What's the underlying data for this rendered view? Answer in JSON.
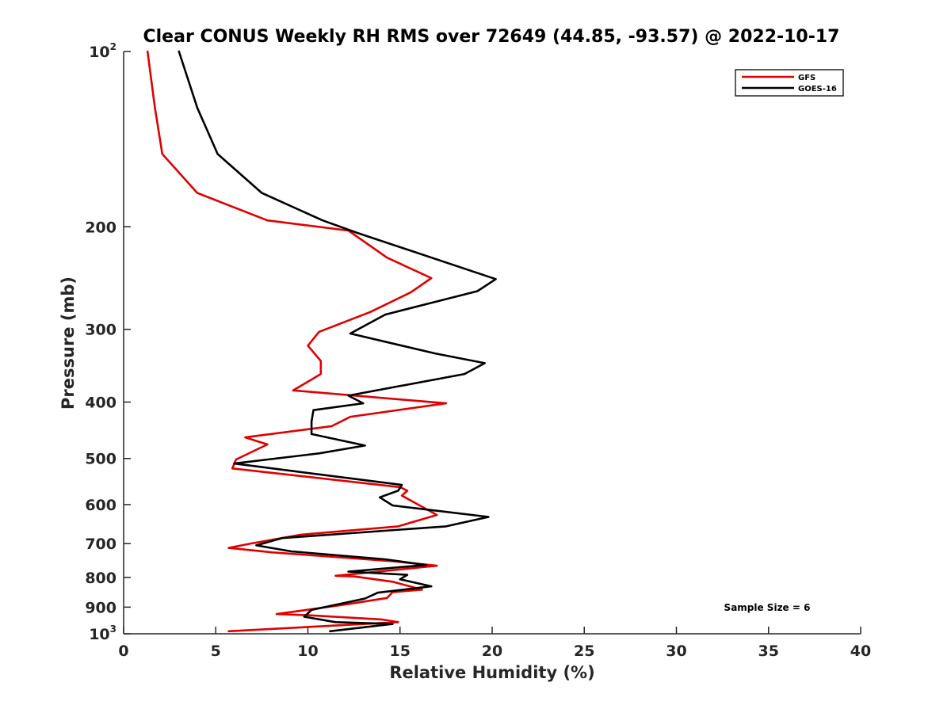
{
  "chart_data": {
    "type": "line",
    "title": "Clear CONUS Weekly RH RMS over 72649 (44.85, -93.57) @ 2022-10-17",
    "xlabel": "Relative Humidity (%)",
    "ylabel": "Pressure (mb)",
    "xlim": [
      0,
      40
    ],
    "ylim": [
      100,
      1000
    ],
    "y_scale": "log",
    "y_reversed": true,
    "x_ticks": [
      "0",
      "5",
      "10",
      "15",
      "20",
      "25",
      "30",
      "35",
      "40"
    ],
    "y_ticks": [
      {
        "value": 100,
        "base": "10",
        "exp": "2"
      },
      {
        "value": 200,
        "label": "200"
      },
      {
        "value": 300,
        "label": "300"
      },
      {
        "value": 400,
        "label": "400"
      },
      {
        "value": 500,
        "label": "500"
      },
      {
        "value": 600,
        "label": "600"
      },
      {
        "value": 700,
        "label": "700"
      },
      {
        "value": 800,
        "label": "800"
      },
      {
        "value": 900,
        "label": "900"
      },
      {
        "value": 1000,
        "base": "10",
        "exp": "3"
      }
    ],
    "grid": false,
    "legend_position": "top-right",
    "series": [
      {
        "name": "GFS",
        "color": "#e00000",
        "points": [
          [
            1.3,
            100
          ],
          [
            1.7,
            125
          ],
          [
            2.1,
            150
          ],
          [
            4.0,
            175
          ],
          [
            7.8,
            195
          ],
          [
            12.2,
            203
          ],
          [
            14.3,
            226
          ],
          [
            16.7,
            245
          ],
          [
            15.6,
            259
          ],
          [
            13.4,
            280
          ],
          [
            10.6,
            303
          ],
          [
            10.0,
            320
          ],
          [
            10.7,
            340
          ],
          [
            10.7,
            358
          ],
          [
            9.2,
            382
          ],
          [
            17.5,
            402
          ],
          [
            12.3,
            424
          ],
          [
            11.3,
            440
          ],
          [
            6.6,
            460
          ],
          [
            7.8,
            473
          ],
          [
            6.1,
            502
          ],
          [
            5.9,
            520
          ],
          [
            15.0,
            560
          ],
          [
            15.4,
            568
          ],
          [
            15.1,
            579
          ],
          [
            17.0,
            625
          ],
          [
            14.9,
            654
          ],
          [
            9.6,
            676
          ],
          [
            6.9,
            700
          ],
          [
            5.7,
            712
          ],
          [
            8.1,
            725
          ],
          [
            14.7,
            751
          ],
          [
            17.0,
            764
          ],
          [
            11.5,
            795
          ],
          [
            12.5,
            797
          ],
          [
            14.6,
            814
          ],
          [
            16.2,
            840
          ],
          [
            14.6,
            848
          ],
          [
            14.3,
            868
          ],
          [
            12.1,
            890
          ],
          [
            8.3,
            925
          ],
          [
            10.2,
            930
          ],
          [
            14.0,
            945
          ],
          [
            14.9,
            955
          ],
          [
            5.7,
            990
          ]
        ]
      },
      {
        "name": "GOES-16",
        "color": "#000000",
        "points": [
          [
            3.0,
            100
          ],
          [
            4.0,
            125
          ],
          [
            5.1,
            150
          ],
          [
            7.5,
            175
          ],
          [
            10.8,
            195
          ],
          [
            12.7,
            205
          ],
          [
            20.2,
            246
          ],
          [
            19.2,
            258
          ],
          [
            14.2,
            283
          ],
          [
            12.3,
            305
          ],
          [
            16.9,
            330
          ],
          [
            19.6,
            343
          ],
          [
            18.5,
            358
          ],
          [
            12.2,
            390
          ],
          [
            13.0,
            402
          ],
          [
            10.3,
            413
          ],
          [
            10.2,
            432
          ],
          [
            10.2,
            454
          ],
          [
            13.1,
            475
          ],
          [
            10.6,
            490
          ],
          [
            6.0,
            510
          ],
          [
            15.1,
            555
          ],
          [
            14.9,
            568
          ],
          [
            13.9,
            583
          ],
          [
            14.6,
            602
          ],
          [
            16.5,
            612
          ],
          [
            19.8,
            630
          ],
          [
            17.5,
            654
          ],
          [
            8.6,
            685
          ],
          [
            7.2,
            705
          ],
          [
            9.1,
            722
          ],
          [
            14.2,
            745
          ],
          [
            16.4,
            762
          ],
          [
            12.2,
            782
          ],
          [
            15.4,
            792
          ],
          [
            15.0,
            806
          ],
          [
            16.7,
            829
          ],
          [
            13.8,
            850
          ],
          [
            13.1,
            870
          ],
          [
            10.2,
            910
          ],
          [
            9.8,
            935
          ],
          [
            11.5,
            955
          ],
          [
            14.6,
            962
          ],
          [
            11.2,
            990
          ]
        ]
      }
    ],
    "annotations": [
      "Sample Size = 6"
    ]
  }
}
